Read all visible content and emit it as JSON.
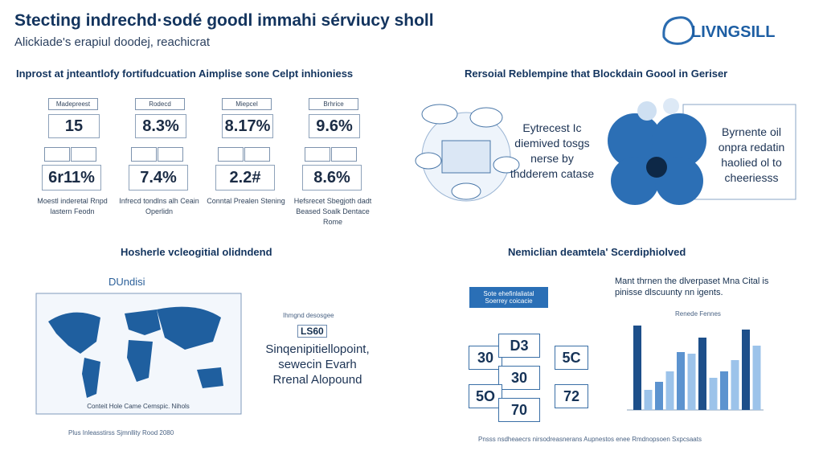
{
  "header": {
    "title": "Stecting indrechd·sodé goodl immahi sérviucy sholl",
    "subtitle": "Alickiade's erapiul doodej, reachicrat",
    "logo": "LIVNGSILL"
  },
  "stats": {
    "title": "Inprost at jnteantlofy fortifudcuation Aimplise sone Celpt inhioniess",
    "cards": [
      {
        "label": "Madepreest",
        "top": "15",
        "bottom": "6r11%",
        "caption": "Moestl inderetal Rnpd lastern Feodn"
      },
      {
        "label": "Rodecd",
        "top": "8.3%",
        "bottom": "7.4%",
        "caption": "Infrecd tondlns alh Ceain Operlidn"
      },
      {
        "label": "Miepcel",
        "top": "8.17%",
        "bottom": "2.2#",
        "caption": "Conntal Prealen Stening"
      },
      {
        "label": "Brhrice",
        "top": "9.6%",
        "bottom": "8.6%",
        "caption": "Hefsrecet Sbegjoth dadt Beased Soalk Dentace Rome"
      }
    ]
  },
  "blockchain": {
    "title": "Rersoial Reblempine that Blockdain Goool in Geriser",
    "text_left": "Eytrecest Ic diemived tosgs nerse by thdderem catase",
    "text_right": "Byrnente oil onpra redatin haolied ol to cheeriesss"
  },
  "map": {
    "title": "Hosherle vcleogitial olidndend",
    "label": "DUndisi",
    "caption": "Conteit Hole Came Cemspic. Nihols",
    "footnote": "Plus Inleasstirss Sjmnllity Rood 2080",
    "side_label": "Ihmgnd desosgee",
    "badge": "LS60",
    "text": "Sinqenipitiellopoint, sewecin Evarh Rrenal Alopound"
  },
  "metrics": {
    "title": "Nemiclian deamtela' Scerdiphiolved",
    "callout": "Sote ehefinlaliatal Soerrey coicacie",
    "numbers": [
      "30",
      "D3",
      "5C",
      "30",
      "5O",
      "72",
      "70"
    ],
    "text": "Mant thrnen the dlverpaset Mna Cital is pinisse dlscuunty nn igents.",
    "chart": {
      "title": "Renede Fennes",
      "values": [
        105,
        25,
        35,
        48,
        72,
        70,
        90,
        40,
        48,
        62,
        100,
        80
      ]
    },
    "footnote": "Pnsss nsdheaecrs nirsodreasnerans Aupnestos enee Rmdnopsoen Sxpcsaats"
  }
}
